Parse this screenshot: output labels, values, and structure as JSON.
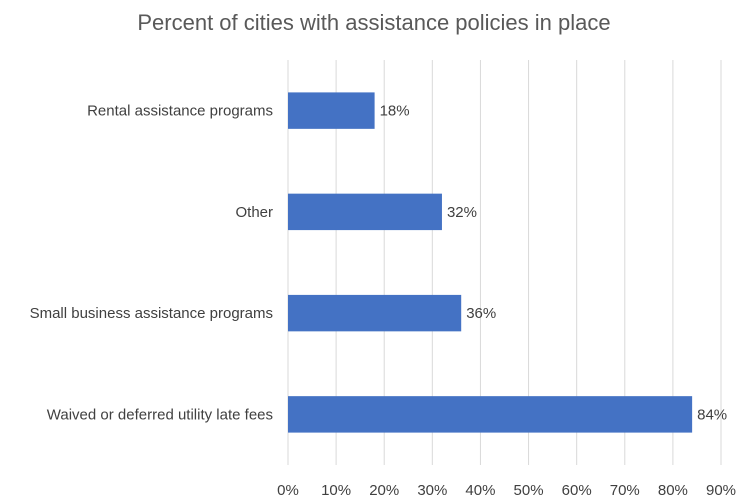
{
  "chart_data": {
    "type": "bar",
    "orientation": "horizontal",
    "title": "Percent of cities with assistance policies in place",
    "categories": [
      "Rental assistance programs",
      "Other",
      "Small business assistance programs",
      "Waived or deferred utility late fees"
    ],
    "values": [
      18,
      32,
      36,
      84
    ],
    "data_labels": [
      "18%",
      "32%",
      "36%",
      "84%"
    ],
    "x_ticks": [
      "0%",
      "10%",
      "20%",
      "30%",
      "40%",
      "50%",
      "60%",
      "70%",
      "80%",
      "90%"
    ],
    "xlim": [
      0,
      90
    ],
    "xlabel": "",
    "ylabel": "",
    "grid": "vertical",
    "legend": "none",
    "bar_color": "#4472C4"
  }
}
